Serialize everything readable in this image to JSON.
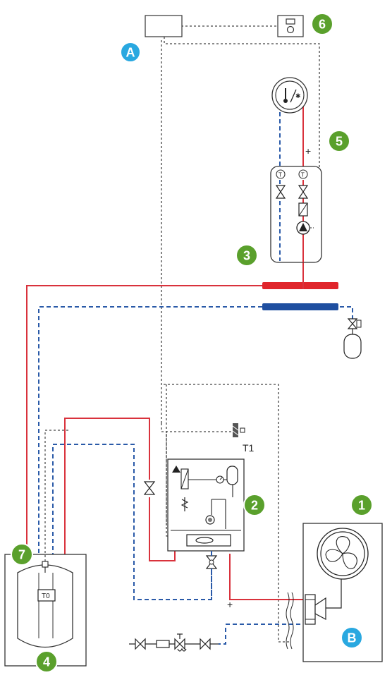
{
  "badges": {
    "one": "1",
    "two": "2",
    "three": "3",
    "four": "4",
    "five": "5",
    "six": "6",
    "seven": "7",
    "a": "A",
    "b": "B"
  },
  "labels": {
    "t0": "T0",
    "t1": "T1",
    "plus_top": "+",
    "plus_bottom": "+"
  },
  "colors": {
    "supply_red": "#d9323c",
    "return_blue": "#2a5aa8",
    "control_line": "#444444",
    "badge_green": "#5aa02c",
    "badge_blue": "#29a8e0",
    "manifold_red": "#e0252b",
    "manifold_blue": "#1f4fa0"
  },
  "icons": [
    "thermostat-icon",
    "expansion-vessel-icon",
    "pump-icon",
    "valve-icon",
    "fan-icon",
    "compressor-icon",
    "controller-icon",
    "room-sensor-icon",
    "temperature-sensor-icon",
    "pressure-gauge-icon"
  ]
}
